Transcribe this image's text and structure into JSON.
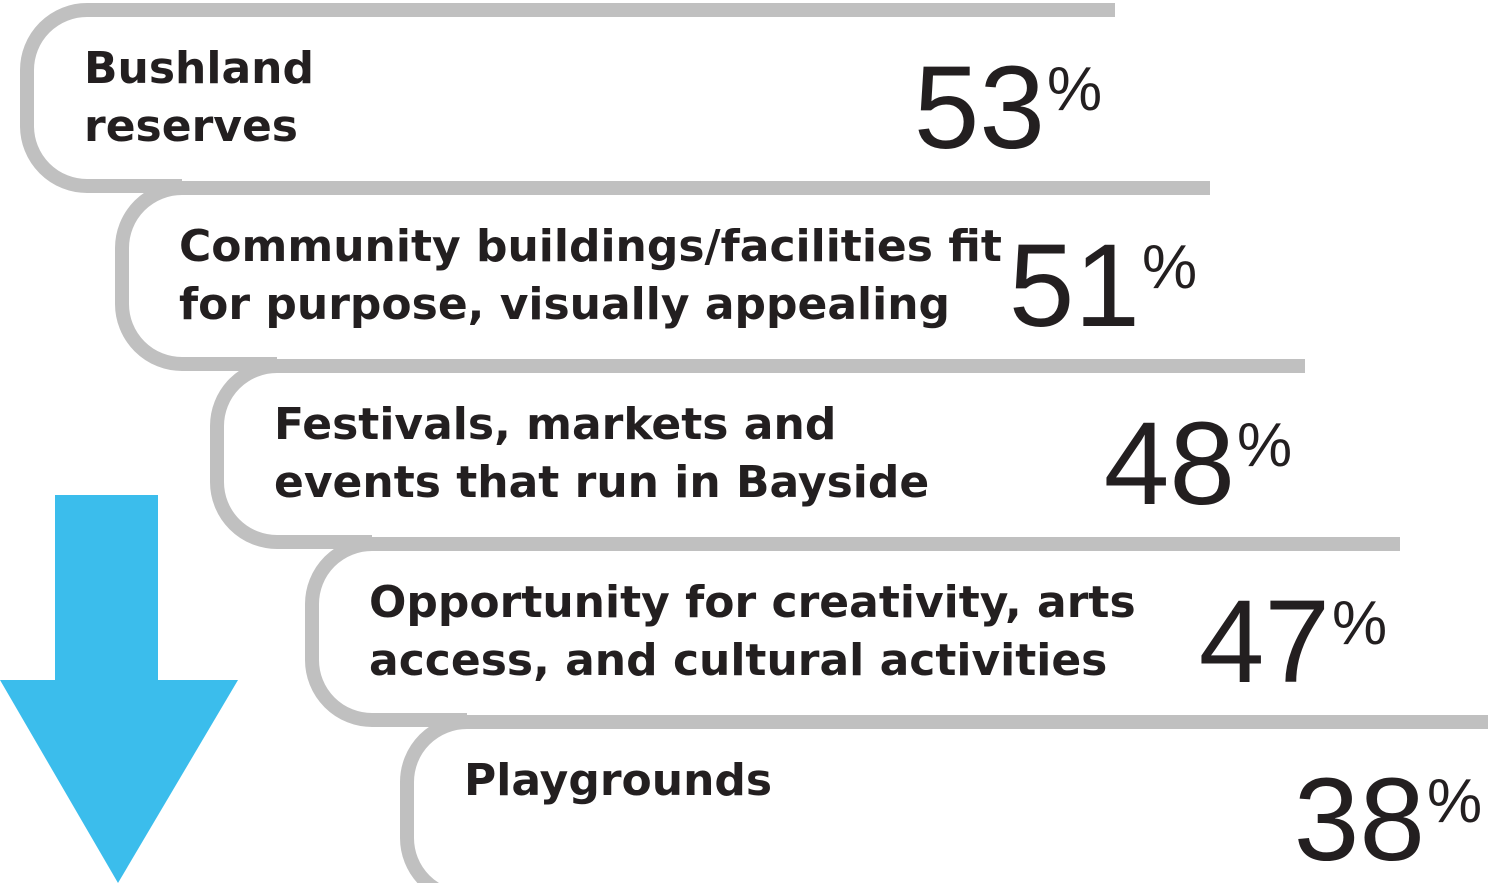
{
  "items": [
    {
      "label": [
        "Bushland",
        "reserves"
      ],
      "value": "53",
      "unit": "%"
    },
    {
      "label": [
        "Community buildings/facilities fit",
        "for purpose, visually appealing"
      ],
      "value": "51",
      "unit": "%"
    },
    {
      "label": [
        "Festivals, markets and",
        "events that run in Bayside"
      ],
      "value": "48",
      "unit": "%"
    },
    {
      "label": [
        "Opportunity for creativity, arts",
        "access, and cultural activities"
      ],
      "value": "47",
      "unit": "%"
    },
    {
      "label": [
        "Playgrounds"
      ],
      "value": "38",
      "unit": "%"
    }
  ]
}
